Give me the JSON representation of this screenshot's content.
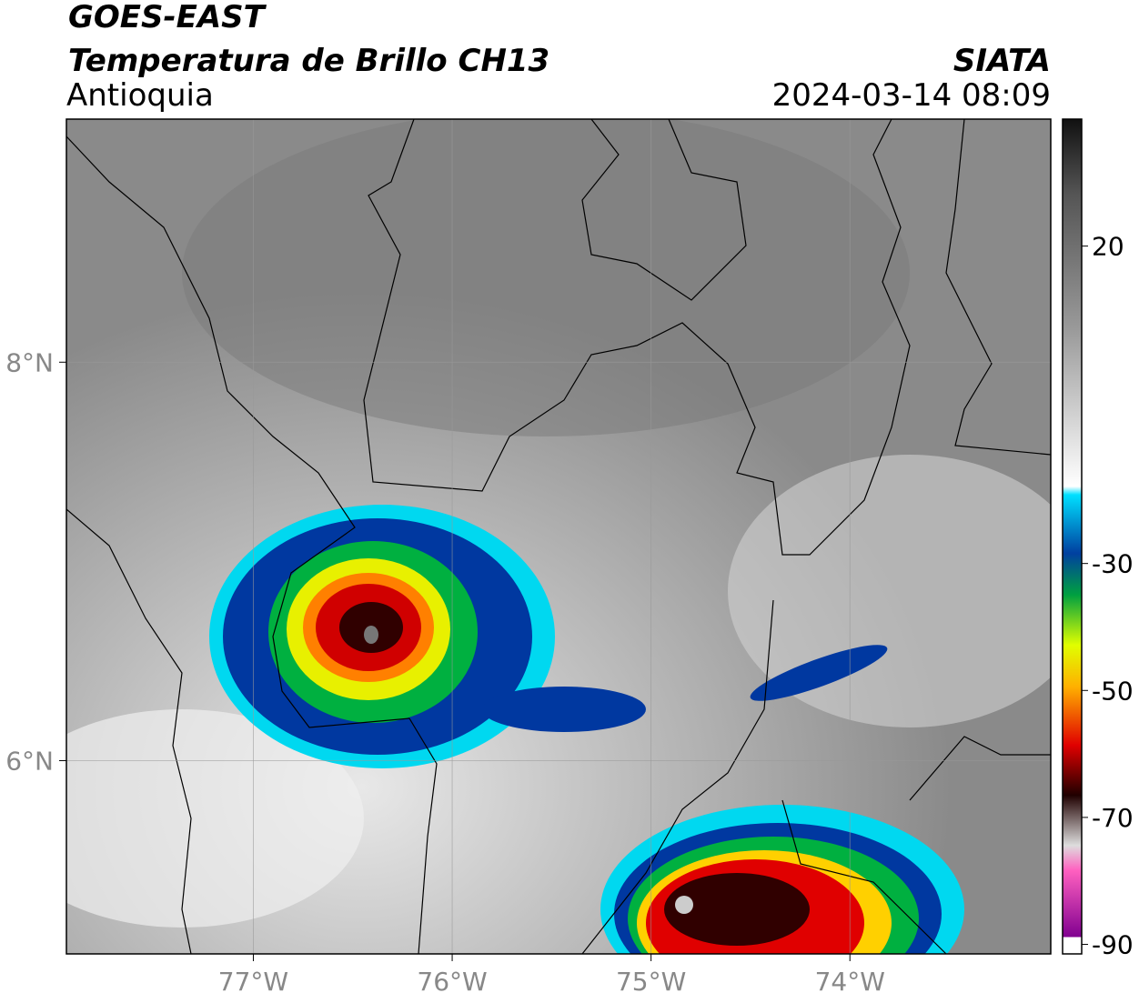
{
  "header": {
    "satellite": "GOES-EAST",
    "product": "Temperatura de Brillo CH13",
    "region": "Antioquia",
    "source": "SIATA",
    "datetime": "2024-03-14 08:09"
  },
  "map": {
    "xlim": [
      -77.94,
      -72.99
    ],
    "ylim": [
      5.03,
      9.22
    ],
    "xticks": [
      {
        "value": -77,
        "label": "77°W"
      },
      {
        "value": -76,
        "label": "76°W"
      },
      {
        "value": -75,
        "label": "75°W"
      },
      {
        "value": -74,
        "label": "74°W"
      }
    ],
    "yticks": [
      {
        "value": 8,
        "label": "8°N"
      },
      {
        "value": 6,
        "label": "6°N"
      }
    ],
    "grid": true
  },
  "colorbar": {
    "lim": [
      -91.5,
      40
    ],
    "ticks": [
      20,
      -30,
      -50,
      -70,
      -90
    ]
  }
}
